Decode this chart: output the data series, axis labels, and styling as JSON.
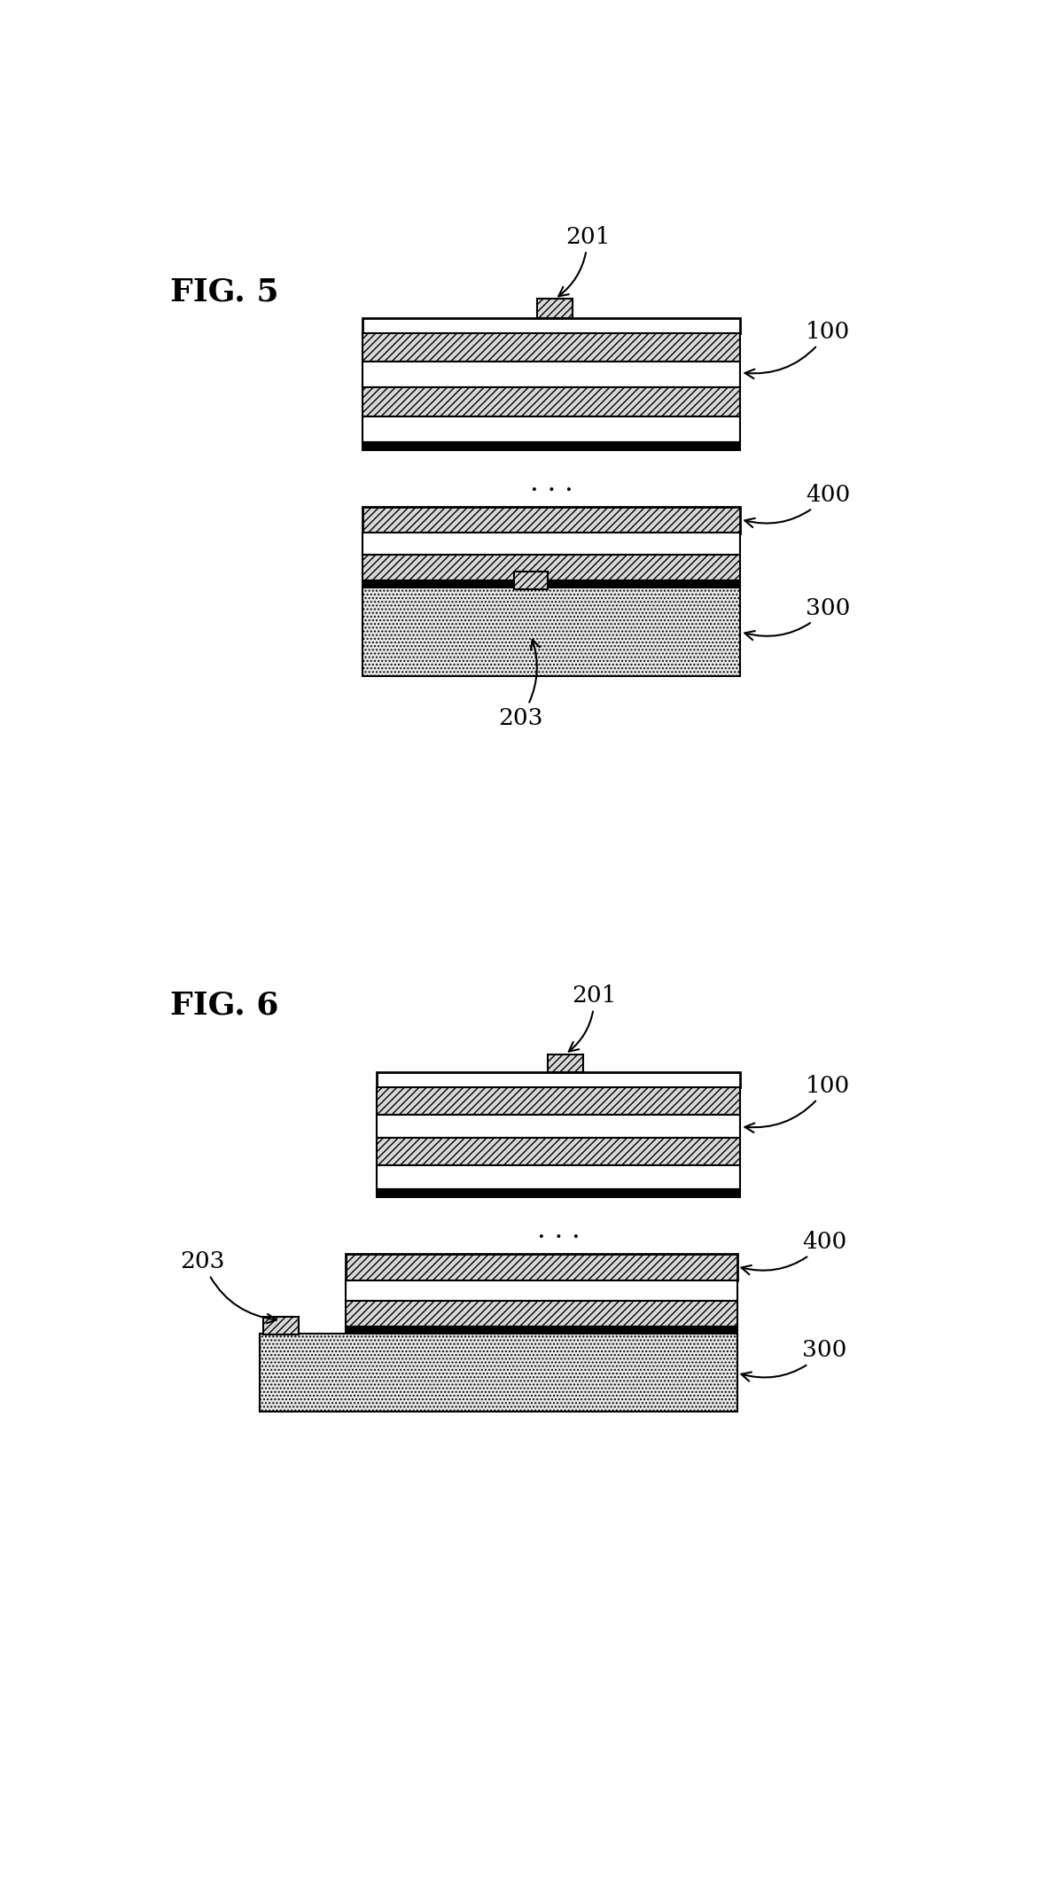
{
  "fig5_label": "FIG. 5",
  "fig6_label": "FIG. 6",
  "bg_color": "#ffffff",
  "hatch_diagonal": "////",
  "hatch_dot": "....",
  "gray_hatch_fc": "#d8d8d8",
  "dot_fc": "#e8e8e8"
}
